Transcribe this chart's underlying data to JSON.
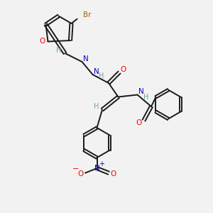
{
  "bg_color": "#f2f2f2",
  "atom_colors": {
    "C": "#000000",
    "H": "#6fa0a0",
    "N": "#0000cc",
    "O": "#ff0000",
    "Br": "#996600"
  },
  "bond_color": "#1a1a1a",
  "lw": 1.4
}
